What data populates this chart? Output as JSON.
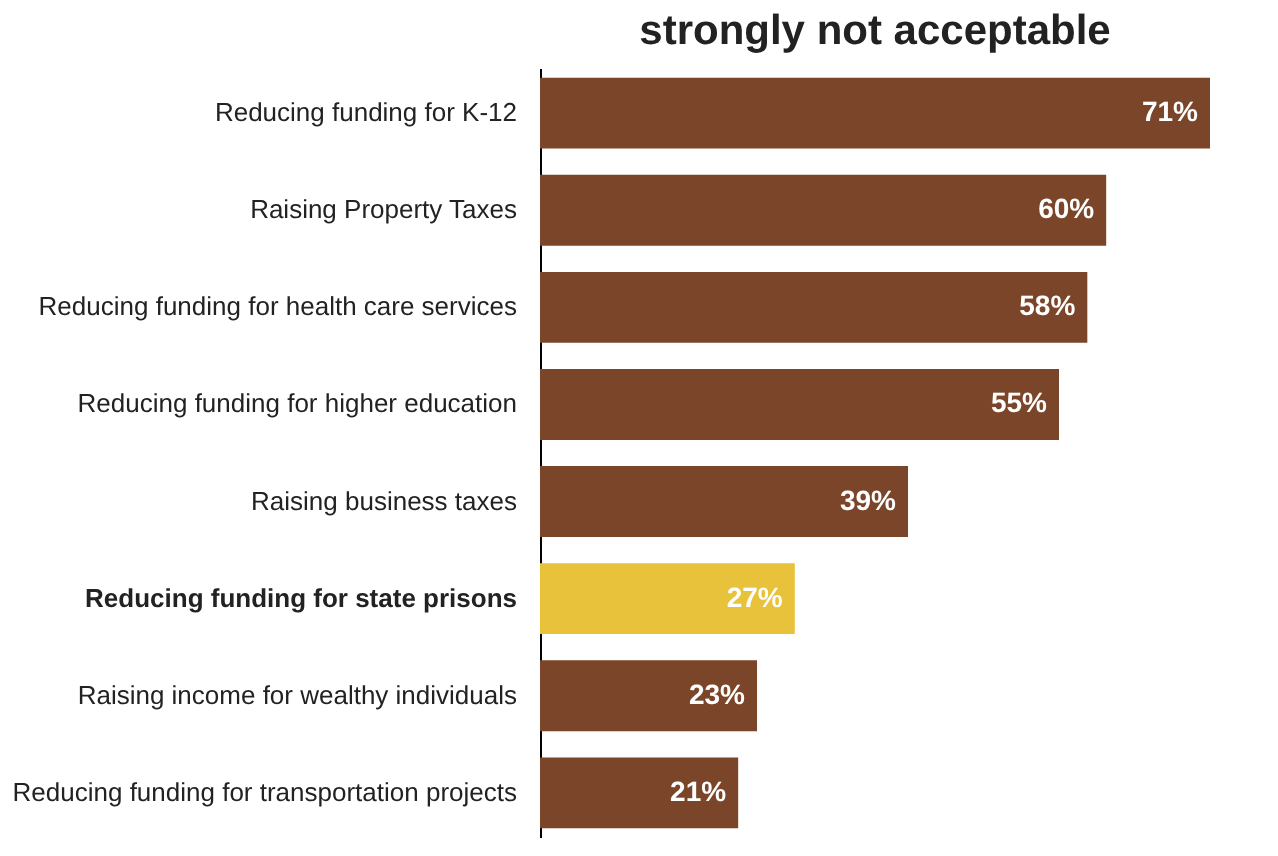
{
  "chart_data": {
    "type": "bar",
    "orientation": "horizontal",
    "title": "strongly not acceptable",
    "categories": [
      "Reducing funding for K-12",
      "Raising Property Taxes",
      "Reducing funding for health care services",
      "Reducing funding for higher education",
      "Raising business taxes",
      "Reducing funding for state prisons",
      "Raising income for wealthy individuals",
      "Reducing funding for transportation projects"
    ],
    "values": [
      71,
      60,
      58,
      55,
      39,
      27,
      23,
      21
    ],
    "colors": [
      "#7a4528",
      "#7a4528",
      "#7a4528",
      "#7a4528",
      "#7a4528",
      "#e8c23a",
      "#7a4528",
      "#7a4528"
    ],
    "value_labels": [
      "71%",
      "60%",
      "58%",
      "55%",
      "39%",
      "27%",
      "23%",
      "21%"
    ],
    "grid": false
  }
}
